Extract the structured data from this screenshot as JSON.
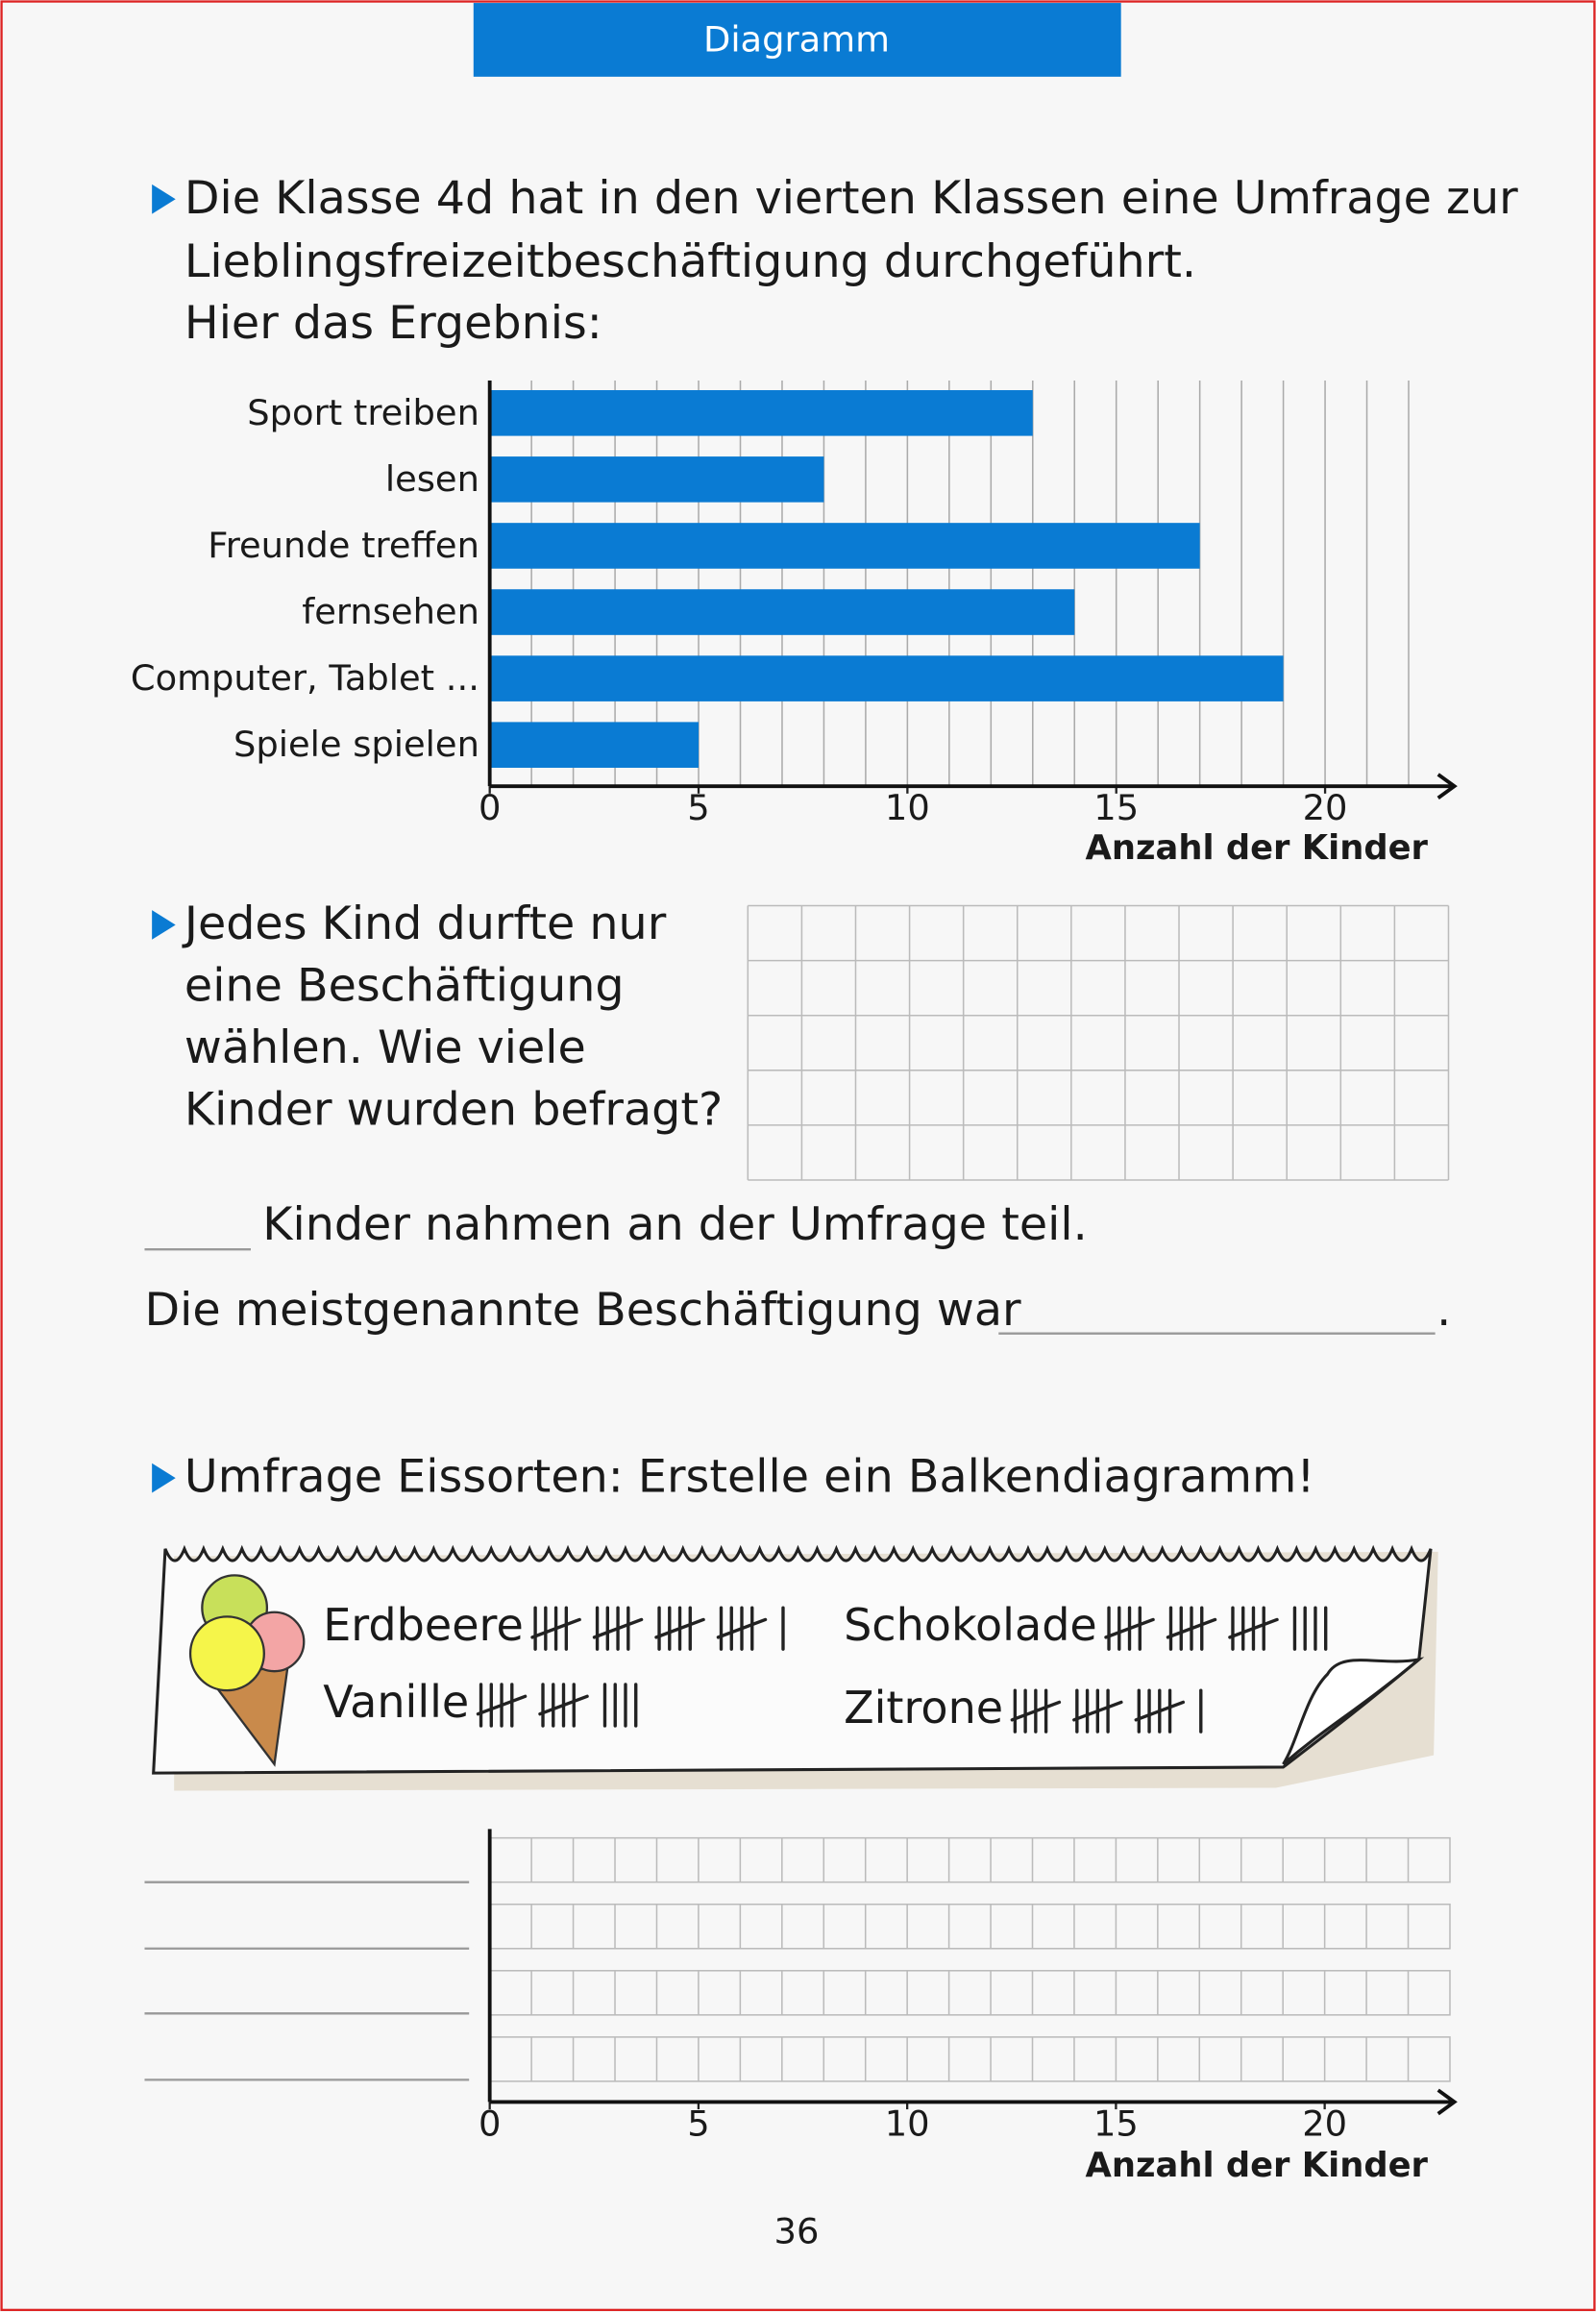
{
  "header": {
    "title": "Diagramm"
  },
  "task1": {
    "lines": [
      "Die Klasse 4d hat in den vierten Klassen eine Umfrage zur",
      "Lieblingsfreizeitbeschäftigung durchgeführt.",
      "Hier das Ergebnis:"
    ]
  },
  "chart_data": {
    "type": "bar",
    "orientation": "horizontal",
    "categories": [
      "Sport treiben",
      "lesen",
      "Freunde treffen",
      "fernsehen",
      "Computer, Tablet ...",
      "Spiele spielen"
    ],
    "values": [
      13,
      8,
      17,
      14,
      19,
      5
    ],
    "color": "#0a7bd3",
    "xlim": [
      0,
      22
    ],
    "xticks": [
      0,
      5,
      10,
      15,
      20
    ],
    "xlabel": "Anzahl der Kinder",
    "grid": true
  },
  "task2": {
    "lines": [
      "Jedes Kind durfte nur",
      "eine Beschäftigung",
      "wählen. Wie viele",
      "Kinder wurden befragt?"
    ]
  },
  "sentences": {
    "participants": "Kinder nahmen an der Umfrage teil.",
    "most_named": "Die meistgenannte Beschäftigung war",
    "end": "."
  },
  "task3": {
    "text": "Umfrage Eissorten: Erstelle ein Balkendiagramm!"
  },
  "tallies": [
    {
      "name": "Erdbeere",
      "count": 21
    },
    {
      "name": "Schokolade",
      "count": 19
    },
    {
      "name": "Vanille",
      "count": 14
    },
    {
      "name": "Zitrone",
      "count": 16
    }
  ],
  "answer_chart": {
    "xlim": [
      0,
      23
    ],
    "xticks": [
      0,
      5,
      10,
      15,
      20
    ],
    "xlabel": "Anzahl der Kinder"
  },
  "page_number": "36"
}
